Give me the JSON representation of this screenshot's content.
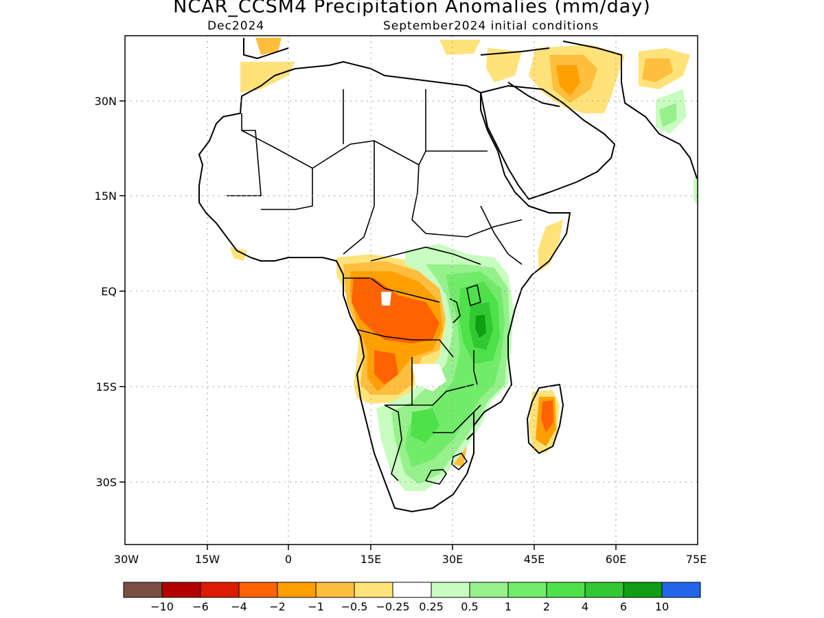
{
  "title": "NCAR_CCSM4 Precipitation Anomalies (mm/day)",
  "subtitle_left": "Dec2024",
  "subtitle_right": "September2024 initial conditions",
  "map": {
    "region": "Africa",
    "lon_range": [
      -30,
      75
    ],
    "lat_range": [
      -40,
      40
    ],
    "y_ticks": [
      {
        "lat": 30,
        "label": "30N"
      },
      {
        "lat": 15,
        "label": "15N"
      },
      {
        "lat": 0,
        "label": "EQ"
      },
      {
        "lat": -15,
        "label": "15S"
      },
      {
        "lat": -30,
        "label": "30S"
      }
    ],
    "x_ticks": [
      {
        "lon": -30,
        "label": "30W"
      },
      {
        "lon": -15,
        "label": "15W"
      },
      {
        "lon": 0,
        "label": "0"
      },
      {
        "lon": 15,
        "label": "15E"
      },
      {
        "lon": 30,
        "label": "30E"
      },
      {
        "lon": 45,
        "label": "45E"
      },
      {
        "lon": 60,
        "label": "60E"
      },
      {
        "lon": 75,
        "label": "75E"
      }
    ],
    "gridlines": "dotted"
  },
  "colorbar": {
    "colors": [
      "#7b4f44",
      "#b30000",
      "#de1b00",
      "#ff6200",
      "#ffa000",
      "#ffbe3d",
      "#ffe37a",
      "#ffffff",
      "#c8fcc0",
      "#96f08c",
      "#72eb6a",
      "#4ee14a",
      "#32c834",
      "#109e12",
      "#2166e8"
    ],
    "labels": [
      "−10",
      "−6",
      "−4",
      "−2",
      "−1",
      "−0.5",
      "−0.25",
      "0.25",
      "0.5",
      "1",
      "2",
      "4",
      "6",
      "10"
    ]
  }
}
